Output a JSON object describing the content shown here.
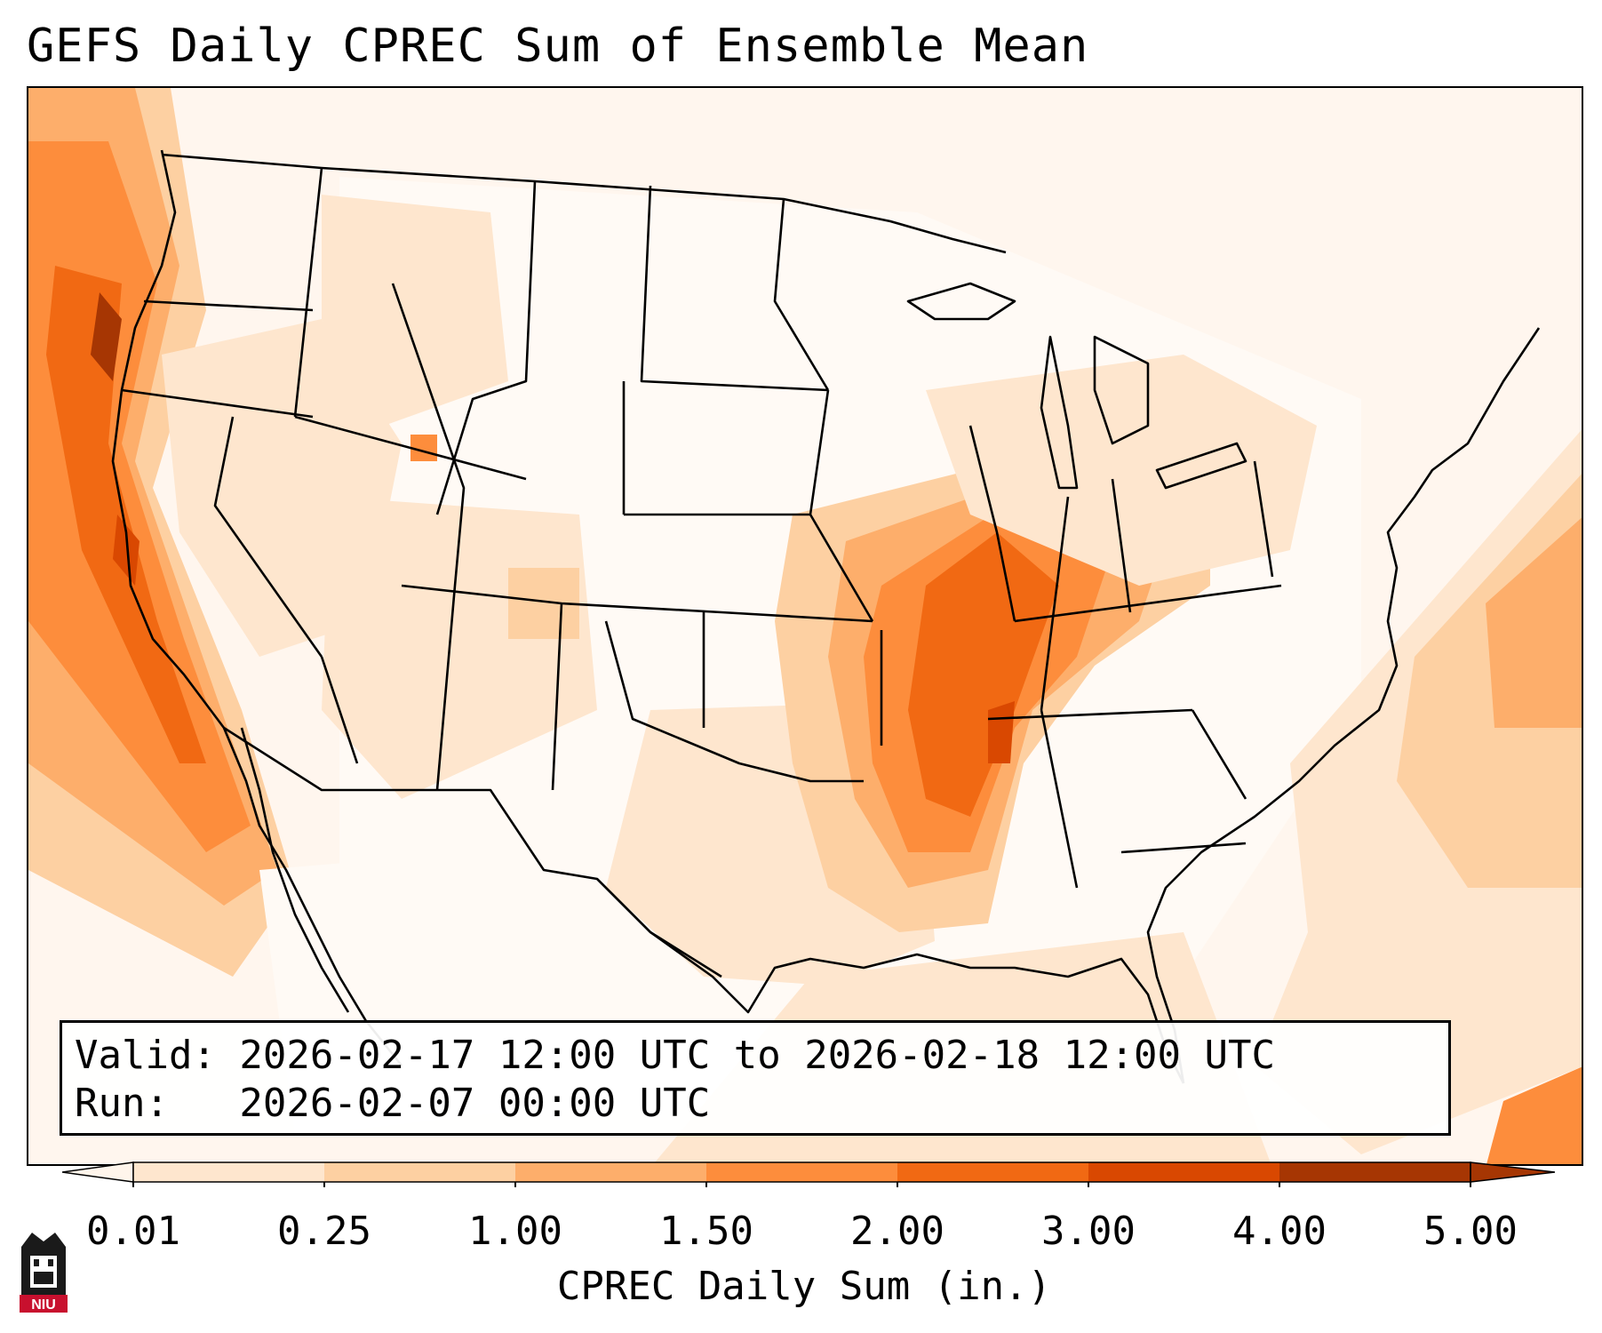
{
  "title": "GEFS Daily CPREC Sum of Ensemble Mean",
  "info": {
    "valid": "Valid: 2026-02-17 12:00 UTC to 2026-02-18 12:00 UTC",
    "run": "Run:   2026-02-07 00:00 UTC"
  },
  "colorbar": {
    "label": "CPREC Daily Sum (in.)",
    "ticks": [
      "0.01",
      "0.25",
      "1.00",
      "1.50",
      "2.00",
      "3.00",
      "4.00",
      "5.00"
    ],
    "colors": [
      "#fff5eb",
      "#fee6ce",
      "#fdd0a2",
      "#fdae6b",
      "#fd8d3c",
      "#f16913",
      "#d94801",
      "#a63603"
    ],
    "extend": "both"
  },
  "logo": {
    "text": "NIU"
  },
  "palette": {
    "coastline": "#000000",
    "background": "#ffffff"
  }
}
